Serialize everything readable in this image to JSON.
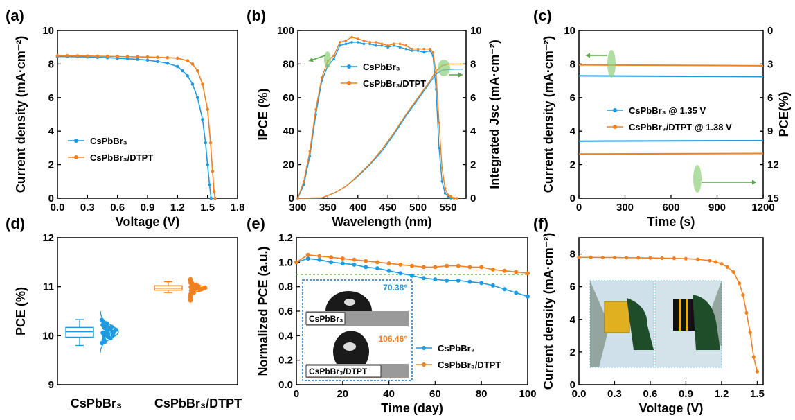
{
  "colors": {
    "blue": "#1e9be0",
    "orange": "#f08121",
    "green": "#5aa845",
    "inset_border": "#1f74c4"
  },
  "chart_data": [
    {
      "panel": "(a)",
      "type": "line",
      "xlabel": "Voltage (V)",
      "ylabel": "Current density (mA·cm⁻²)",
      "xlim": [
        0,
        1.8
      ],
      "ylim": [
        0,
        10
      ],
      "xticks": [
        "0.0",
        "0.3",
        "0.6",
        "0.9",
        "1.2",
        "1.5",
        "1.8"
      ],
      "yticks": [
        "0",
        "2",
        "4",
        "6",
        "8",
        "10"
      ],
      "legend": [
        "CsPbBr₃",
        "CsPbBr₃/DTPT"
      ],
      "series": [
        {
          "name": "CsPbBr₃",
          "color": "blue",
          "x": [
            0,
            0.1,
            0.2,
            0.3,
            0.4,
            0.5,
            0.6,
            0.7,
            0.8,
            0.9,
            1.0,
            1.1,
            1.2,
            1.25,
            1.3,
            1.35,
            1.4,
            1.45,
            1.48,
            1.5,
            1.52,
            1.535
          ],
          "y": [
            8.45,
            8.44,
            8.43,
            8.42,
            8.4,
            8.38,
            8.35,
            8.32,
            8.28,
            8.23,
            8.15,
            8.05,
            7.85,
            7.6,
            7.3,
            6.8,
            6.0,
            4.7,
            3.3,
            2.0,
            0.8,
            0
          ]
        },
        {
          "name": "CsPbBr₃/DTPT",
          "color": "orange",
          "x": [
            0,
            0.1,
            0.2,
            0.3,
            0.4,
            0.5,
            0.6,
            0.7,
            0.8,
            0.9,
            1.0,
            1.1,
            1.2,
            1.3,
            1.35,
            1.4,
            1.45,
            1.5,
            1.53,
            1.55,
            1.565,
            1.575
          ],
          "y": [
            8.5,
            8.5,
            8.49,
            8.48,
            8.47,
            8.46,
            8.45,
            8.44,
            8.43,
            8.42,
            8.4,
            8.38,
            8.35,
            8.2,
            8.0,
            7.6,
            6.8,
            5.3,
            3.3,
            1.6,
            0.4,
            0
          ]
        }
      ]
    },
    {
      "panel": "(b)",
      "type": "line",
      "xlabel": "Wavelength (nm)",
      "ylabel": "IPCE (%)",
      "ylabel_right": "Integrated Jsc (mA·cm⁻²)",
      "xlim": [
        300,
        580
      ],
      "ylim": [
        0,
        100
      ],
      "ylim_right": [
        0,
        10
      ],
      "xticks": [
        "300",
        "350",
        "400",
        "450",
        "500",
        "550"
      ],
      "yticks": [
        "0",
        "20",
        "40",
        "60",
        "80",
        "100"
      ],
      "yticks_right": [
        "0",
        "2",
        "4",
        "6",
        "8",
        "10"
      ],
      "legend": [
        "CsPbBr₃",
        "CsPbBr₃/DTPT"
      ],
      "series": [
        {
          "name": "CsPbBr₃",
          "color": "blue",
          "axis": "left",
          "x": [
            300,
            310,
            320,
            330,
            340,
            350,
            360,
            370,
            380,
            390,
            400,
            410,
            420,
            430,
            440,
            450,
            460,
            470,
            480,
            490,
            500,
            510,
            520,
            525,
            530,
            535,
            540,
            545,
            550,
            555,
            560
          ],
          "y": [
            0,
            8,
            25,
            50,
            70,
            79,
            83,
            91,
            92,
            93,
            93,
            92,
            92,
            91,
            91,
            90,
            91,
            90,
            89,
            88,
            88,
            87,
            88,
            85,
            65,
            30,
            10,
            3,
            1,
            0,
            0
          ]
        },
        {
          "name": "CsPbBr₃/DTPT",
          "color": "orange",
          "axis": "left",
          "x": [
            300,
            310,
            320,
            330,
            340,
            350,
            360,
            370,
            380,
            390,
            400,
            410,
            420,
            430,
            440,
            450,
            460,
            470,
            480,
            490,
            500,
            510,
            520,
            525,
            530,
            535,
            540,
            545,
            550,
            555,
            560,
            565
          ],
          "y": [
            0,
            10,
            28,
            53,
            72,
            82,
            85,
            93,
            94,
            96,
            95,
            94,
            93,
            93,
            92,
            91,
            92,
            92,
            91,
            89,
            89,
            89,
            89,
            87,
            75,
            45,
            18,
            6,
            2,
            1,
            0,
            0
          ]
        },
        {
          "name": "CsPbBr₃",
          "color": "blue",
          "axis": "right",
          "x": [
            300,
            340,
            360,
            380,
            400,
            420,
            440,
            460,
            480,
            500,
            520,
            530,
            540,
            550,
            560,
            575
          ],
          "y": [
            0,
            0.02,
            0.3,
            0.7,
            1.3,
            2.0,
            2.8,
            3.8,
            4.9,
            5.9,
            6.9,
            7.4,
            7.62,
            7.68,
            7.7,
            7.7
          ]
        },
        {
          "name": "CsPbBr₃/DTPT",
          "color": "orange",
          "axis": "right",
          "x": [
            300,
            340,
            360,
            380,
            400,
            420,
            440,
            460,
            480,
            500,
            520,
            530,
            540,
            550,
            560,
            575
          ],
          "y": [
            0,
            0.03,
            0.3,
            0.7,
            1.35,
            2.05,
            2.9,
            3.9,
            5.0,
            6.0,
            7.0,
            7.6,
            7.9,
            8.0,
            8.0,
            8.0
          ]
        }
      ]
    },
    {
      "panel": "(c)",
      "type": "line",
      "xlabel": "Time (s)",
      "ylabel": "Current density (mA·cm⁻²)",
      "ylabel_right": "PCE(%)",
      "xlim": [
        0,
        1200
      ],
      "ylim": [
        0,
        10
      ],
      "ylim_right": [
        0,
        15
      ],
      "right_axis_inverted": true,
      "xticks": [
        "0",
        "300",
        "600",
        "900",
        "1200"
      ],
      "yticks": [
        "0",
        "2",
        "4",
        "6",
        "8",
        "10"
      ],
      "yticks_right": [
        "0",
        "3",
        "6",
        "9",
        "12",
        "15"
      ],
      "legend": [
        "CsPbBr₃ @ 1.35 V",
        "CsPbBr₃/DTPT @ 1.38 V"
      ],
      "series": [
        {
          "name": "CsPbBr₃ @ 1.35 V",
          "color": "blue",
          "axis": "left",
          "x": [
            0,
            1200
          ],
          "y": [
            7.3,
            7.25
          ]
        },
        {
          "name": "CsPbBr₃/DTPT @ 1.38 V",
          "color": "orange",
          "axis": "left",
          "x": [
            0,
            1200
          ],
          "y": [
            7.95,
            7.9
          ]
        },
        {
          "name": "CsPbBr₃ @ 1.35 V",
          "color": "blue",
          "axis": "right",
          "x": [
            0,
            1200
          ],
          "y": [
            9.9,
            9.85
          ]
        },
        {
          "name": "CsPbBr₃/DTPT @ 1.38 V",
          "color": "orange",
          "axis": "right",
          "x": [
            0,
            1200
          ],
          "y": [
            11.05,
            11.0
          ]
        }
      ]
    },
    {
      "panel": "(d)",
      "type": "box",
      "ylabel": "PCE (%)",
      "ylim": [
        9,
        12
      ],
      "yticks": [
        "9",
        "10",
        "11",
        "12"
      ],
      "categories": [
        "CsPbBr₃",
        "CsPbBr₃/DTPT"
      ],
      "box_stats": [
        {
          "category": "CsPbBr₃",
          "min": 9.8,
          "q1": 9.97,
          "median": 10.08,
          "q3": 10.17,
          "max": 10.33
        },
        {
          "category": "CsPbBr₃/DTPT",
          "min": 10.88,
          "q1": 10.93,
          "median": 10.97,
          "q3": 11.02,
          "max": 11.1
        }
      ],
      "points": [
        {
          "category": "CsPbBr₃",
          "values": [
            10.32,
            10.28,
            10.25,
            10.22,
            10.2,
            10.18,
            10.16,
            10.14,
            10.12,
            10.1,
            10.08,
            10.06,
            10.04,
            10.02,
            10.0,
            9.98,
            9.95,
            9.92,
            9.88,
            9.85,
            10.11,
            10.07,
            10.03
          ]
        },
        {
          "category": "CsPbBr₃/DTPT",
          "values": [
            11.15,
            11.12,
            11.1,
            11.08,
            11.06,
            11.04,
            11.02,
            11.0,
            10.98,
            10.96,
            10.94,
            10.92,
            10.9,
            10.88,
            10.85,
            10.82,
            10.78,
            10.72,
            11.01,
            10.99,
            10.97,
            10.95,
            10.93
          ]
        }
      ]
    },
    {
      "panel": "(e)",
      "type": "line",
      "xlabel": "Time (day)",
      "ylabel": "Normalized PCE  (a.u.)",
      "xlim": [
        0,
        100
      ],
      "ylim": [
        0,
        1.2
      ],
      "xticks": [
        "0",
        "20",
        "40",
        "60",
        "80",
        "100"
      ],
      "yticks": [
        "0.0",
        "0.2",
        "0.4",
        "0.6",
        "0.8",
        "1.0",
        "1.2"
      ],
      "legend": [
        "CsPbBr₃",
        "CsPbBr₃/DTPT"
      ],
      "reference_line": 0.9,
      "series": [
        {
          "name": "CsPbBr₃",
          "color": "blue",
          "x": [
            0,
            5,
            10,
            15,
            20,
            25,
            30,
            35,
            40,
            45,
            50,
            55,
            60,
            65,
            70,
            75,
            80,
            85,
            90,
            95,
            100
          ],
          "y": [
            1.0,
            1.03,
            1.02,
            1.0,
            0.99,
            0.98,
            0.96,
            0.95,
            0.93,
            0.91,
            0.89,
            0.87,
            0.86,
            0.85,
            0.85,
            0.84,
            0.83,
            0.81,
            0.78,
            0.75,
            0.72
          ]
        },
        {
          "name": "CsPbBr₃/DTPT",
          "color": "orange",
          "x": [
            0,
            5,
            10,
            15,
            20,
            25,
            30,
            35,
            40,
            45,
            50,
            55,
            60,
            65,
            70,
            75,
            80,
            85,
            90,
            95,
            100
          ],
          "y": [
            1.0,
            1.06,
            1.05,
            1.04,
            1.03,
            1.02,
            1.01,
            1.0,
            0.99,
            0.98,
            0.97,
            0.96,
            0.96,
            0.97,
            0.97,
            0.96,
            0.96,
            0.94,
            0.93,
            0.92,
            0.91
          ]
        }
      ],
      "inset": {
        "top_label": "CsPbBr₃",
        "top_angle": "70.38°",
        "bottom_label": "CsPbBr₃/DTPT",
        "bottom_angle": "106.46°"
      }
    },
    {
      "panel": "(f)",
      "type": "line",
      "xlabel": "Voltage (V)",
      "ylabel": "Current density (mA·cm⁻²)",
      "xlim": [
        0,
        1.55
      ],
      "ylim": [
        0,
        9
      ],
      "xticks": [
        "0.0",
        "0.3",
        "0.6",
        "0.9",
        "1.2",
        "1.5"
      ],
      "yticks": [
        "0",
        "2",
        "4",
        "6",
        "8"
      ],
      "series": [
        {
          "name": "",
          "color": "orange",
          "x": [
            0,
            0.1,
            0.2,
            0.3,
            0.4,
            0.5,
            0.6,
            0.7,
            0.8,
            0.9,
            1.0,
            1.1,
            1.15,
            1.2,
            1.25,
            1.3,
            1.35,
            1.38,
            1.41,
            1.44,
            1.47,
            1.5
          ],
          "y": [
            7.8,
            7.8,
            7.79,
            7.79,
            7.78,
            7.77,
            7.76,
            7.75,
            7.74,
            7.72,
            7.68,
            7.6,
            7.52,
            7.4,
            7.2,
            6.9,
            6.2,
            5.5,
            4.4,
            3.2,
            1.7,
            0.8
          ]
        }
      ]
    }
  ]
}
